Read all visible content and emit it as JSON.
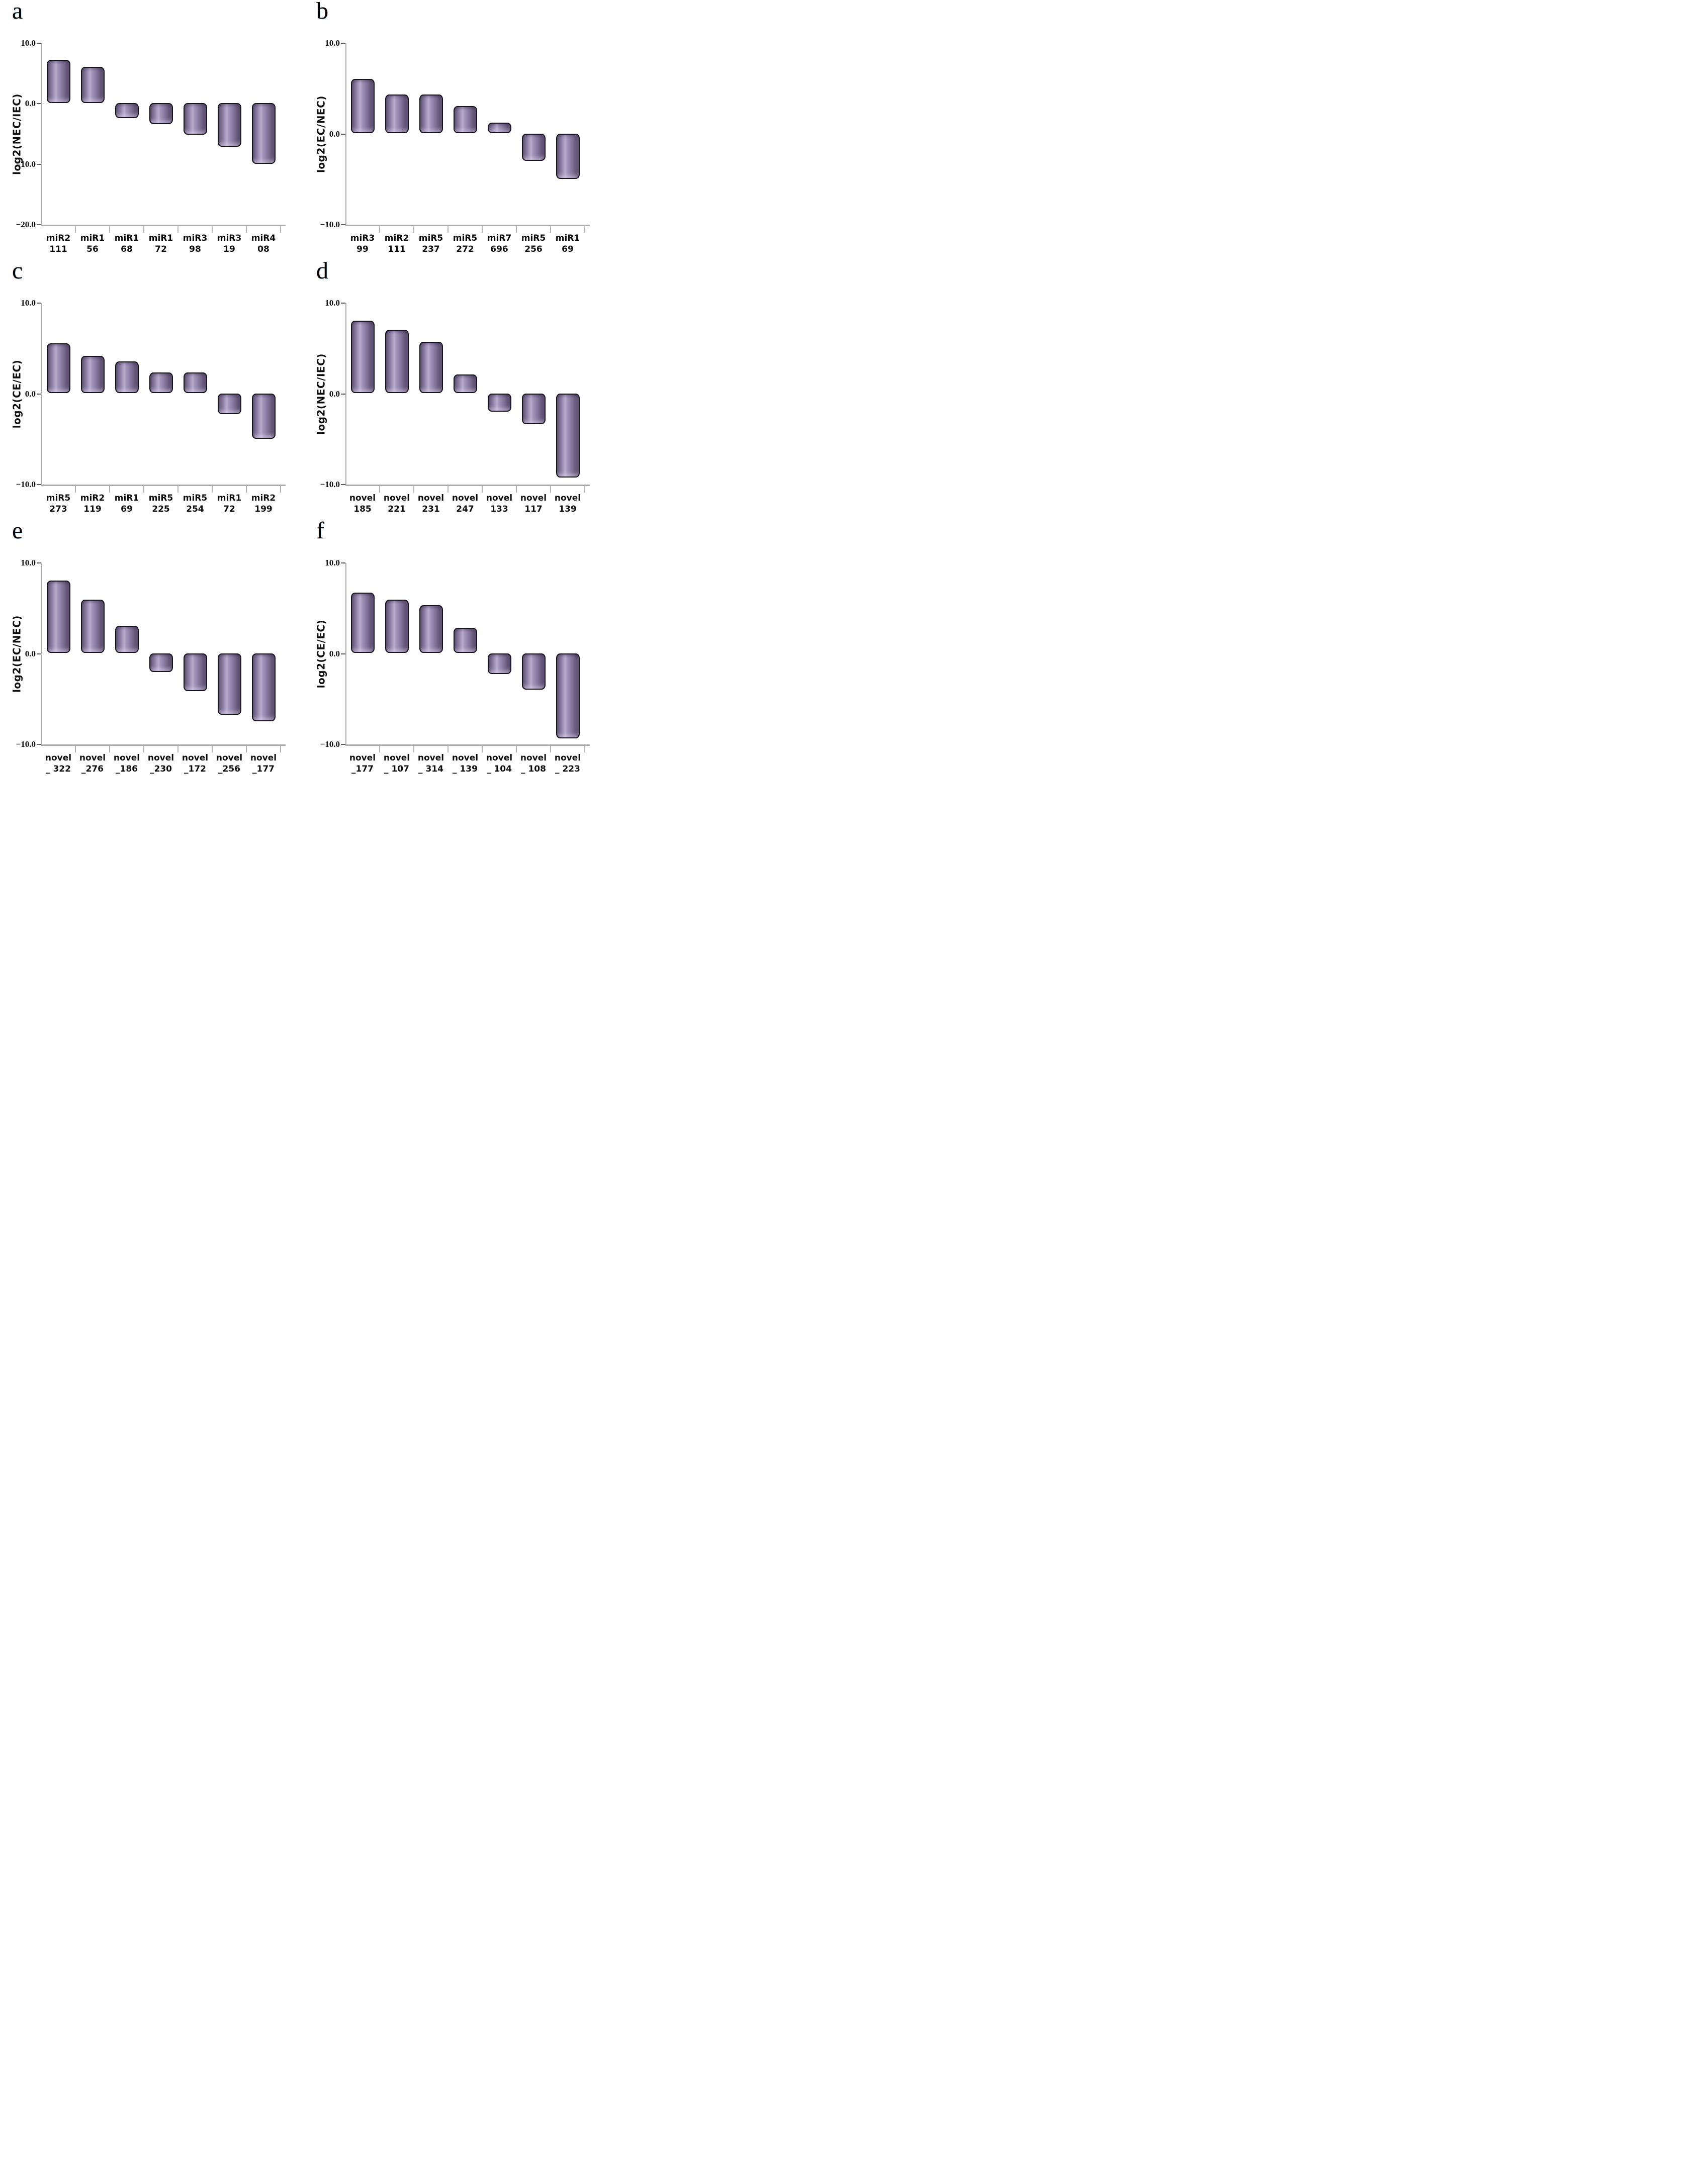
{
  "page": {
    "background": "#ffffff",
    "description_visible_text_only": true
  },
  "style": {
    "bar_fill_main": "#9b89af",
    "bar_highlight": "#baacce",
    "bar_edge_dark": "#473c58",
    "bar_outline": "#19121f",
    "axis_line_color": "#ababab",
    "tick_mark_color": "#5a5a5a",
    "text_color": "#0f0f0f"
  },
  "chart_data": [
    {
      "panel": "a",
      "type": "bar",
      "title": "",
      "xlabel": "",
      "ylabel": "log2(NEC/IEC)",
      "ylim": [
        -20,
        10
      ],
      "yticks": [
        10,
        0,
        -10,
        -20
      ],
      "ytick_labels": [
        "10.0",
        "0.0",
        "−10.0",
        "−20.0"
      ],
      "categories": [
        "miR2111",
        "miR156",
        "miR168",
        "miR172",
        "miR398",
        "miR319",
        "miR408"
      ],
      "category_label_lines": [
        [
          "miR2",
          "111"
        ],
        [
          "miR1",
          "56"
        ],
        [
          "miR1",
          "68"
        ],
        [
          "miR1",
          "72"
        ],
        [
          "miR3",
          "98"
        ],
        [
          "miR3",
          "19"
        ],
        [
          "miR4",
          "08"
        ]
      ],
      "values": [
        7.2,
        6.0,
        -2.5,
        -3.5,
        -5.2,
        -7.2,
        -10.0
      ],
      "legend": null,
      "grid": false
    },
    {
      "panel": "b",
      "type": "bar",
      "title": "",
      "xlabel": "",
      "ylabel": "log2(EC/NEC)",
      "ylim": [
        -10,
        10
      ],
      "yticks": [
        10,
        0,
        -10
      ],
      "ytick_labels": [
        "10.0",
        "0.0",
        "−10.0"
      ],
      "categories": [
        "miR399",
        "miR2111",
        "miR5237",
        "miR5272",
        "miR7696",
        "miR5256",
        "miR169"
      ],
      "category_label_lines": [
        [
          "miR3",
          "99"
        ],
        [
          "miR2",
          "111"
        ],
        [
          "miR5",
          "237"
        ],
        [
          "miR5",
          "272"
        ],
        [
          "miR7",
          "696"
        ],
        [
          "miR5",
          "256"
        ],
        [
          "miR1",
          "69"
        ]
      ],
      "values": [
        6.0,
        4.3,
        4.3,
        3.0,
        1.2,
        -3.0,
        -5.0
      ],
      "legend": null,
      "grid": false
    },
    {
      "panel": "c",
      "type": "bar",
      "title": "",
      "xlabel": "",
      "ylabel": "log2(CE/EC)",
      "ylim": [
        -10,
        10
      ],
      "yticks": [
        10,
        0,
        -10
      ],
      "ytick_labels": [
        "10.0",
        "0.0",
        "−10.0"
      ],
      "categories": [
        "miR5273",
        "miR2119",
        "miR169",
        "miR5225",
        "miR5254",
        "miR172",
        "miR2199"
      ],
      "category_label_lines": [
        [
          "miR5",
          "273"
        ],
        [
          "miR2",
          "119"
        ],
        [
          "miR1",
          "69"
        ],
        [
          "miR5",
          "225"
        ],
        [
          "miR5",
          "254"
        ],
        [
          "miR1",
          "72"
        ],
        [
          "miR2",
          "199"
        ]
      ],
      "values": [
        5.5,
        4.1,
        3.5,
        2.3,
        2.3,
        -2.3,
        -5.0
      ],
      "legend": null,
      "grid": false
    },
    {
      "panel": "d",
      "type": "bar",
      "title": "",
      "xlabel": "",
      "ylabel": "log2(NEC/IEC)",
      "ylim": [
        -10,
        10
      ],
      "yticks": [
        10,
        0,
        -10
      ],
      "ytick_labels": [
        "10.0",
        "0.0",
        "−10.0"
      ],
      "categories": [
        "novel185",
        "novel221",
        "novel231",
        "novel247",
        "novel133",
        "novel117",
        "novel139"
      ],
      "category_label_lines": [
        [
          "novel",
          "185"
        ],
        [
          "novel",
          "221"
        ],
        [
          "novel",
          "231"
        ],
        [
          "novel",
          "247"
        ],
        [
          "novel",
          "133"
        ],
        [
          "novel",
          "117"
        ],
        [
          "novel",
          "139"
        ]
      ],
      "values": [
        8.0,
        7.0,
        5.7,
        2.1,
        -2.0,
        -3.4,
        -9.3
      ],
      "legend": null,
      "grid": false
    },
    {
      "panel": "e",
      "type": "bar",
      "title": "",
      "xlabel": "",
      "ylabel": "log2(EC/NEC)",
      "ylim": [
        -10,
        10
      ],
      "yticks": [
        10,
        0,
        -10
      ],
      "ytick_labels": [
        "10.0",
        "0.0",
        "−10.0"
      ],
      "categories": [
        "novel_322",
        "novel_276",
        "novel_186",
        "novel_230",
        "novel_172",
        "novel_256",
        "novel_177"
      ],
      "category_label_lines": [
        [
          "novel",
          "_ 322"
        ],
        [
          "novel",
          "_276"
        ],
        [
          "novel",
          "_186"
        ],
        [
          "novel",
          "_230"
        ],
        [
          "novel",
          "_172"
        ],
        [
          "novel",
          "_256"
        ],
        [
          "novel",
          "_177"
        ]
      ],
      "values": [
        8.0,
        5.9,
        3.0,
        -2.1,
        -4.2,
        -6.8,
        -7.5
      ],
      "legend": null,
      "grid": false
    },
    {
      "panel": "f",
      "type": "bar",
      "title": "",
      "xlabel": "",
      "ylabel": "log2(CE/EC)",
      "ylim": [
        -10,
        10
      ],
      "yticks": [
        10,
        0,
        -10
      ],
      "ytick_labels": [
        "10.0",
        "0.0",
        "−10.0"
      ],
      "categories": [
        "novel_177",
        "novel_107",
        "novel_314",
        "novel_139",
        "novel_104",
        "novel_108",
        "novel_223"
      ],
      "category_label_lines": [
        [
          "novel",
          "_177"
        ],
        [
          "novel",
          "_ 107"
        ],
        [
          "novel",
          "_ 314"
        ],
        [
          "novel",
          "_ 139"
        ],
        [
          "novel",
          "_ 104"
        ],
        [
          "novel",
          "_ 108"
        ],
        [
          "novel",
          "_ 223"
        ]
      ],
      "values": [
        6.7,
        5.9,
        5.3,
        2.8,
        -2.3,
        -4.0,
        -9.4
      ],
      "legend": null,
      "grid": false
    }
  ]
}
